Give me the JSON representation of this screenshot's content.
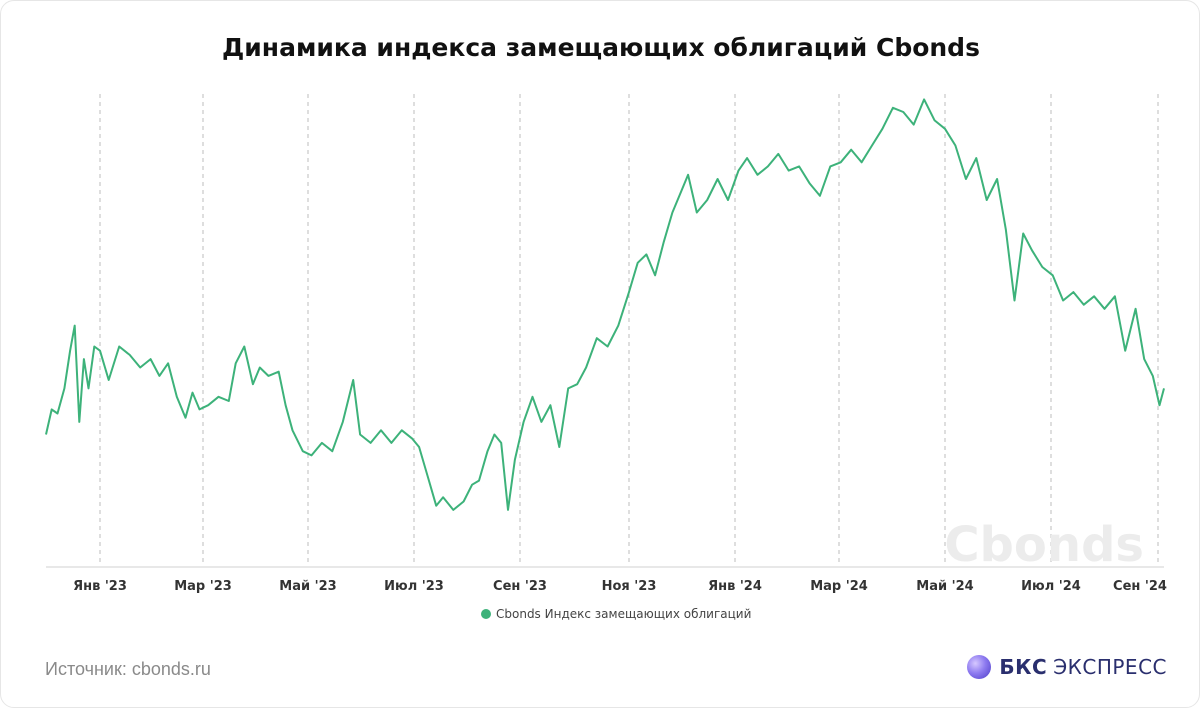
{
  "title": "Динамика индекса замещающих облигаций Cbonds",
  "source": "Источник: cbonds.ru",
  "brand": {
    "strong": "БКС",
    "rest": "ЭКСПРЕСС",
    "icon": "bks-logo-icon"
  },
  "watermark": "Cbonds",
  "colors": {
    "line": "#3db27a",
    "grid": "#bdbdbd",
    "axis": "#d0d0d0"
  },
  "chart_data": {
    "type": "line",
    "title": "Динамика индекса замещающих облигаций Cbonds",
    "xlabel": "",
    "ylabel": "",
    "x_tick_labels": [
      "Янв '23",
      "Мар '23",
      "Май '23",
      "Июл '23",
      "Сен '23",
      "Ноя '23",
      "Янв '24",
      "Мар '24",
      "Май '24",
      "Июл '24",
      "Сен '24"
    ],
    "x_range": [
      "2022-11-15",
      "2024-09-05"
    ],
    "ylim": [
      0,
      100
    ],
    "grid": "vertical dashed",
    "legend_position": "bottom-center",
    "series": [
      {
        "name": "Cbonds Индекс замещающих облигаций",
        "points": [
          [
            "2022-11-15",
            24
          ],
          [
            "2022-11-20",
            30
          ],
          [
            "2022-11-25",
            29
          ],
          [
            "2022-12-01",
            35
          ],
          [
            "2022-12-06",
            44
          ],
          [
            "2022-12-10",
            50
          ],
          [
            "2022-12-14",
            27
          ],
          [
            "2022-12-18",
            42
          ],
          [
            "2022-12-22",
            35
          ],
          [
            "2022-12-27",
            45
          ],
          [
            "2023-01-01",
            44
          ],
          [
            "2023-01-06",
            37
          ],
          [
            "2023-01-12",
            45
          ],
          [
            "2023-01-18",
            43
          ],
          [
            "2023-01-24",
            40
          ],
          [
            "2023-01-30",
            42
          ],
          [
            "2023-02-04",
            38
          ],
          [
            "2023-02-09",
            41
          ],
          [
            "2023-02-14",
            33
          ],
          [
            "2023-02-19",
            28
          ],
          [
            "2023-02-23",
            34
          ],
          [
            "2023-02-27",
            30
          ],
          [
            "2023-03-04",
            31
          ],
          [
            "2023-03-10",
            33
          ],
          [
            "2023-03-16",
            32
          ],
          [
            "2023-03-20",
            41
          ],
          [
            "2023-03-25",
            45
          ],
          [
            "2023-03-30",
            36
          ],
          [
            "2023-04-03",
            40
          ],
          [
            "2023-04-08",
            38
          ],
          [
            "2023-04-14",
            39
          ],
          [
            "2023-04-18",
            31
          ],
          [
            "2023-04-22",
            25
          ],
          [
            "2023-04-28",
            20
          ],
          [
            "2023-05-03",
            19
          ],
          [
            "2023-05-09",
            22
          ],
          [
            "2023-05-15",
            20
          ],
          [
            "2023-05-21",
            27
          ],
          [
            "2023-05-27",
            37
          ],
          [
            "2023-05-31",
            24
          ],
          [
            "2023-06-06",
            22
          ],
          [
            "2023-06-12",
            25
          ],
          [
            "2023-06-18",
            22
          ],
          [
            "2023-06-24",
            25
          ],
          [
            "2023-06-30",
            23
          ],
          [
            "2023-07-04",
            21
          ],
          [
            "2023-07-09",
            14
          ],
          [
            "2023-07-14",
            7
          ],
          [
            "2023-07-18",
            9
          ],
          [
            "2023-07-24",
            6
          ],
          [
            "2023-07-30",
            8
          ],
          [
            "2023-08-04",
            12
          ],
          [
            "2023-08-08",
            13
          ],
          [
            "2023-08-13",
            20
          ],
          [
            "2023-08-17",
            24
          ],
          [
            "2023-08-21",
            22
          ],
          [
            "2023-08-25",
            6
          ],
          [
            "2023-08-29",
            18
          ],
          [
            "2023-09-03",
            27
          ],
          [
            "2023-09-08",
            33
          ],
          [
            "2023-09-13",
            27
          ],
          [
            "2023-09-18",
            31
          ],
          [
            "2023-09-23",
            21
          ],
          [
            "2023-09-28",
            35
          ],
          [
            "2023-10-03",
            36
          ],
          [
            "2023-10-08",
            40
          ],
          [
            "2023-10-14",
            47
          ],
          [
            "2023-10-20",
            45
          ],
          [
            "2023-10-26",
            50
          ],
          [
            "2023-11-01",
            58
          ],
          [
            "2023-11-06",
            65
          ],
          [
            "2023-11-11",
            67
          ],
          [
            "2023-11-16",
            62
          ],
          [
            "2023-11-21",
            70
          ],
          [
            "2023-11-26",
            77
          ],
          [
            "2023-12-01",
            82
          ],
          [
            "2023-12-05",
            86
          ],
          [
            "2023-12-10",
            77
          ],
          [
            "2023-12-16",
            80
          ],
          [
            "2023-12-22",
            85
          ],
          [
            "2023-12-28",
            80
          ],
          [
            "2024-01-03",
            87
          ],
          [
            "2024-01-08",
            90
          ],
          [
            "2024-01-14",
            86
          ],
          [
            "2024-01-20",
            88
          ],
          [
            "2024-01-26",
            91
          ],
          [
            "2024-02-01",
            87
          ],
          [
            "2024-02-07",
            88
          ],
          [
            "2024-02-13",
            84
          ],
          [
            "2024-02-19",
            81
          ],
          [
            "2024-02-25",
            88
          ],
          [
            "2024-03-02",
            89
          ],
          [
            "2024-03-08",
            92
          ],
          [
            "2024-03-14",
            89
          ],
          [
            "2024-03-20",
            93
          ],
          [
            "2024-03-26",
            97
          ],
          [
            "2024-04-01",
            102
          ],
          [
            "2024-04-07",
            101
          ],
          [
            "2024-04-13",
            98
          ],
          [
            "2024-04-19",
            104
          ],
          [
            "2024-04-25",
            99
          ],
          [
            "2024-05-01",
            97
          ],
          [
            "2024-05-07",
            93
          ],
          [
            "2024-05-13",
            85
          ],
          [
            "2024-05-19",
            90
          ],
          [
            "2024-05-25",
            80
          ],
          [
            "2024-05-31",
            85
          ],
          [
            "2024-06-05",
            73
          ],
          [
            "2024-06-10",
            56
          ],
          [
            "2024-06-15",
            72
          ],
          [
            "2024-06-20",
            68
          ],
          [
            "2024-06-26",
            64
          ],
          [
            "2024-07-02",
            62
          ],
          [
            "2024-07-08",
            56
          ],
          [
            "2024-07-14",
            58
          ],
          [
            "2024-07-20",
            55
          ],
          [
            "2024-07-26",
            57
          ],
          [
            "2024-08-01",
            54
          ],
          [
            "2024-08-07",
            57
          ],
          [
            "2024-08-13",
            44
          ],
          [
            "2024-08-19",
            54
          ],
          [
            "2024-08-24",
            42
          ],
          [
            "2024-08-29",
            38
          ],
          [
            "2024-09-02",
            31
          ],
          [
            "2024-09-05",
            35
          ]
        ]
      }
    ]
  }
}
